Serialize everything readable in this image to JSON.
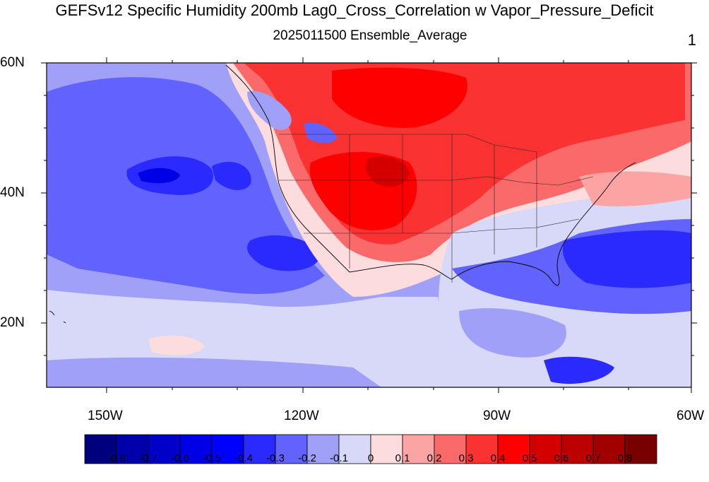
{
  "title": "GEFSv12 Specific Humidity 200mb Lag0_Cross_Correlation w Vapor_Pressure_Deficit",
  "subtitle": "2025011500 Ensemble_Average",
  "panel_number": "1",
  "lat_labels": [
    "60N",
    "40N",
    "20N"
  ],
  "lon_labels": [
    "150W",
    "120W",
    "90W",
    "60W"
  ],
  "colorbar": {
    "colors": [
      "#00007f",
      "#0000aa",
      "#0000c8",
      "#0000e6",
      "#0000ff",
      "#2a2aff",
      "#6262ff",
      "#a0a0f8",
      "#d8d8f8",
      "#fcdcdc",
      "#fca4a4",
      "#fa6a6a",
      "#fa3232",
      "#ff0000",
      "#d40000",
      "#bc0000",
      "#a00000",
      "#780000"
    ],
    "labels": [
      "-0.8",
      "-0.7",
      "-0.6",
      "-0.5",
      "-0.4",
      "-0.3",
      "-0.2",
      "-0.1",
      "0",
      "0.1",
      "0.2",
      "0.3",
      "0.4",
      "0.5",
      "0.6",
      "0.7",
      "0.8"
    ]
  }
}
